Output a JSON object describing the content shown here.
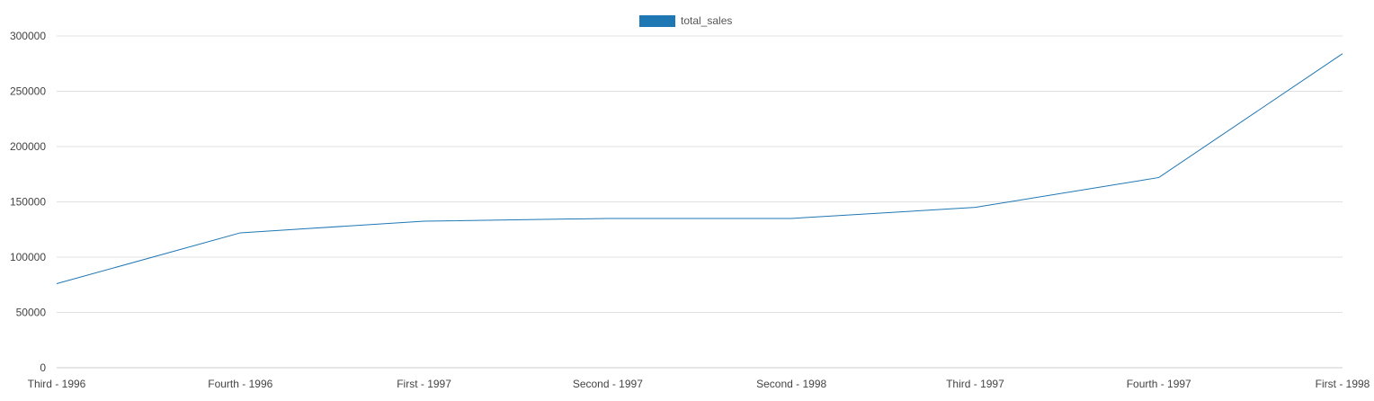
{
  "chart_data": {
    "type": "line",
    "title": "",
    "xlabel": "",
    "ylabel": "",
    "categories": [
      "Third - 1996",
      "Fourth - 1996",
      "First - 1997",
      "Second - 1997",
      "Second - 1998",
      "Third - 1997",
      "Fourth - 1997",
      "First - 1998"
    ],
    "series": [
      {
        "name": "total_sales",
        "values": [
          76000,
          122000,
          132500,
          135000,
          135000,
          145000,
          172000,
          284000
        ]
      }
    ],
    "ylim": [
      0,
      300000
    ],
    "yticks": [
      0,
      50000,
      100000,
      150000,
      200000,
      250000,
      300000
    ],
    "ytick_labels": [
      "0",
      "50000",
      "100000",
      "150000",
      "200000",
      "250000",
      "300000"
    ],
    "grid": true,
    "legend_position": "top-center",
    "colors": {
      "series": "#1f77b4",
      "legend_swatch": "#1f77b4",
      "grid": "#e0e0e0",
      "axis": "#cccccc",
      "text": "#444444"
    }
  }
}
